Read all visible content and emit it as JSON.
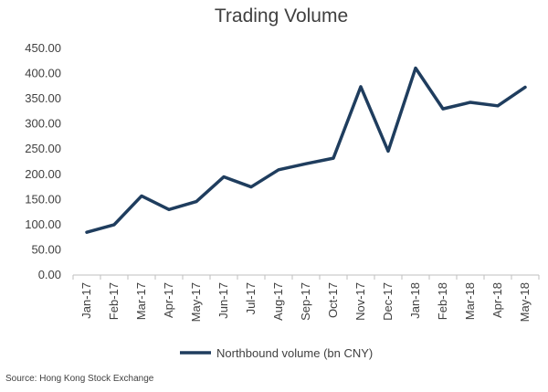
{
  "chart_data": {
    "type": "line",
    "title": "Trading Volume",
    "categories": [
      "Jan-17",
      "Feb-17",
      "Mar-17",
      "Apr-17",
      "May-17",
      "Jun-17",
      "Jul-17",
      "Aug-17",
      "Sep-17",
      "Oct-17",
      "Nov-17",
      "Dec-17",
      "Jan-18",
      "Feb-18",
      "Mar-18",
      "Apr-18",
      "May-18"
    ],
    "series": [
      {
        "name": "Northbound volume (bn CNY)",
        "values": [
          85,
          100,
          157,
          130,
          146,
          195,
          175,
          209,
          221,
          232,
          374,
          246,
          411,
          330,
          343,
          336,
          373
        ],
        "color": "#1f3d5e"
      }
    ],
    "y_ticks": [
      "0.00",
      "50.00",
      "100.00",
      "150.00",
      "200.00",
      "250.00",
      "300.00",
      "350.00",
      "400.00",
      "450.00"
    ],
    "ylim": [
      0,
      450
    ],
    "xlabel": "",
    "ylabel": "",
    "grid": false,
    "legend_position": "bottom"
  },
  "source": "Source: Hong Kong Stock Exchange"
}
